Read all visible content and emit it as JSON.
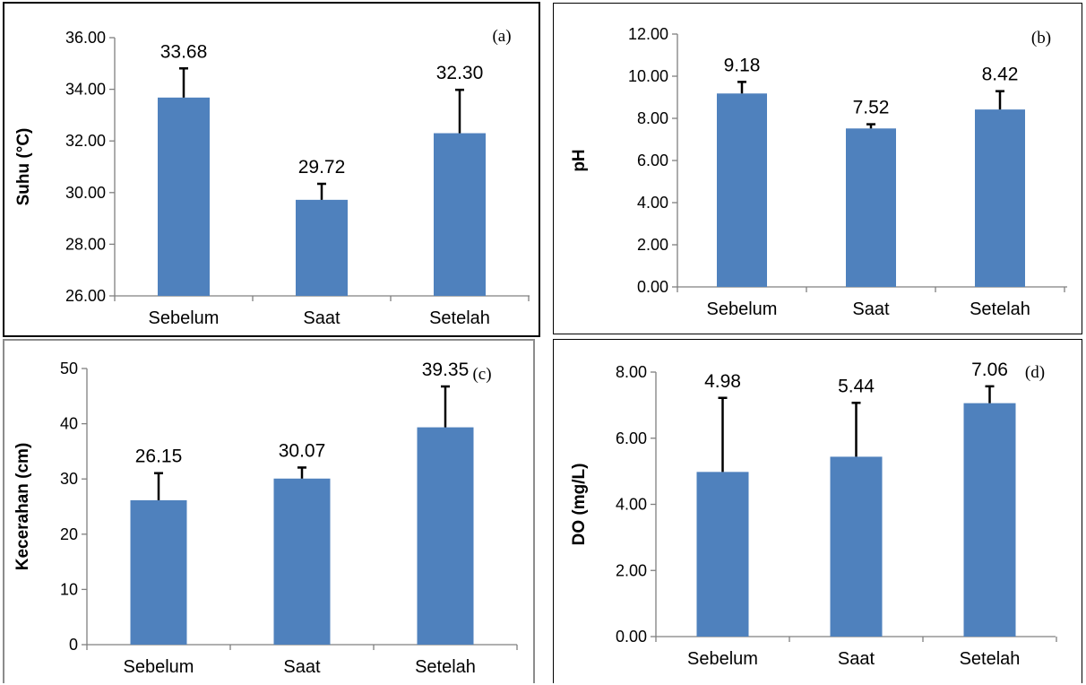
{
  "chart_data": [
    {
      "type": "bar",
      "panel_label": "(a)",
      "categories": [
        "Sebelum",
        "Saat",
        "Setelah"
      ],
      "values": [
        33.68,
        29.72,
        32.3
      ],
      "value_labels": [
        "33.68",
        "29.72",
        "32.30"
      ],
      "error_plus": [
        1.13,
        0.62,
        1.68
      ],
      "ylabel": "Suhu (°C)",
      "ylim": [
        26,
        36
      ],
      "yticks": [
        26,
        28,
        30,
        32,
        34,
        36
      ],
      "ytick_labels": [
        "26.00",
        "28.00",
        "30.00",
        "32.00",
        "34.00",
        "36.00"
      ],
      "bar_color": "#4F81BD",
      "grid": false
    },
    {
      "type": "bar",
      "panel_label": "(b)",
      "categories": [
        "Sebelum",
        "Saat",
        "Setelah"
      ],
      "values": [
        9.18,
        7.52,
        8.42
      ],
      "value_labels": [
        "9.18",
        "7.52",
        "8.42"
      ],
      "error_plus": [
        0.55,
        0.2,
        0.87
      ],
      "ylabel": "pH",
      "ylim": [
        0,
        12
      ],
      "yticks": [
        0,
        2,
        4,
        6,
        8,
        10,
        12
      ],
      "ytick_labels": [
        "0.00",
        "2.00",
        "4.00",
        "6.00",
        "8.00",
        "10.00",
        "12.00"
      ],
      "bar_color": "#4F81BD",
      "grid": false
    },
    {
      "type": "bar",
      "panel_label": "(c)",
      "categories": [
        "Sebelum",
        "Saat",
        "Setelah"
      ],
      "values": [
        26.15,
        30.07,
        39.35
      ],
      "value_labels": [
        "26.15",
        "30.07",
        "39.35"
      ],
      "error_plus": [
        4.9,
        2.0,
        7.4
      ],
      "ylabel": "Kecerahan (cm)",
      "ylim": [
        0,
        50
      ],
      "yticks": [
        0,
        10,
        20,
        30,
        40,
        50
      ],
      "ytick_labels": [
        "0",
        "10",
        "20",
        "30",
        "40",
        "50"
      ],
      "bar_color": "#4F81BD",
      "grid": false
    },
    {
      "type": "bar",
      "panel_label": "(d)",
      "categories": [
        "Sebelum",
        "Saat",
        "Setelah"
      ],
      "values": [
        4.98,
        5.44,
        7.06
      ],
      "value_labels": [
        "4.98",
        "5.44",
        "7.06"
      ],
      "error_plus": [
        2.24,
        1.63,
        0.51
      ],
      "ylabel": "DO (mg/L)",
      "ylim": [
        0,
        8
      ],
      "yticks": [
        0,
        2,
        4,
        6,
        8
      ],
      "ytick_labels": [
        "0.00",
        "2.00",
        "4.00",
        "6.00",
        "8.00"
      ],
      "bar_color": "#4F81BD",
      "grid": false
    }
  ]
}
